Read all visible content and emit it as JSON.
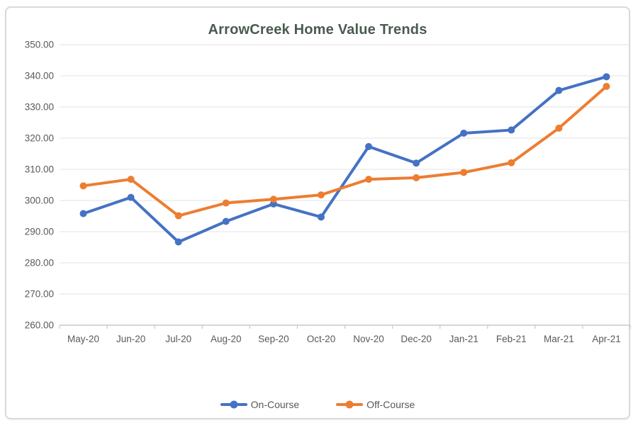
{
  "colors": {
    "on_course": "#4472C4",
    "off_course": "#ED7D31",
    "title_text": "#4a5b50",
    "axis_text": "#595959",
    "gridline": "#e3e3e3",
    "axis_line": "#c9c9c9",
    "card_border": "#d9d9d9"
  },
  "chart_data": {
    "type": "line",
    "title": "ArrowCreek Home Value Trends",
    "categories": [
      "May-20",
      "Jun-20",
      "Jul-20",
      "Aug-20",
      "Sep-20",
      "Oct-20",
      "Nov-20",
      "Dec-20",
      "Jan-21",
      "Feb-21",
      "Mar-21",
      "Apr-21"
    ],
    "series": [
      {
        "name": "On-Course",
        "color": "#4472C4",
        "values": [
          295.8,
          301.0,
          286.7,
          293.3,
          298.9,
          294.7,
          317.3,
          312.0,
          321.6,
          322.6,
          335.3,
          339.7
        ]
      },
      {
        "name": "Off-Course",
        "color": "#ED7D31",
        "values": [
          304.7,
          306.8,
          295.1,
          299.2,
          300.4,
          301.8,
          306.8,
          307.3,
          309.0,
          312.1,
          323.2,
          336.6
        ]
      }
    ],
    "ylim": [
      260,
      350
    ],
    "ytick_step": 10,
    "ytick_labels": [
      "350.00",
      "340.00",
      "330.00",
      "320.00",
      "310.00",
      "300.00",
      "290.00",
      "280.00",
      "270.00",
      "260.00"
    ],
    "xlabel": "",
    "ylabel": "",
    "grid": true,
    "legend_position": "bottom"
  }
}
